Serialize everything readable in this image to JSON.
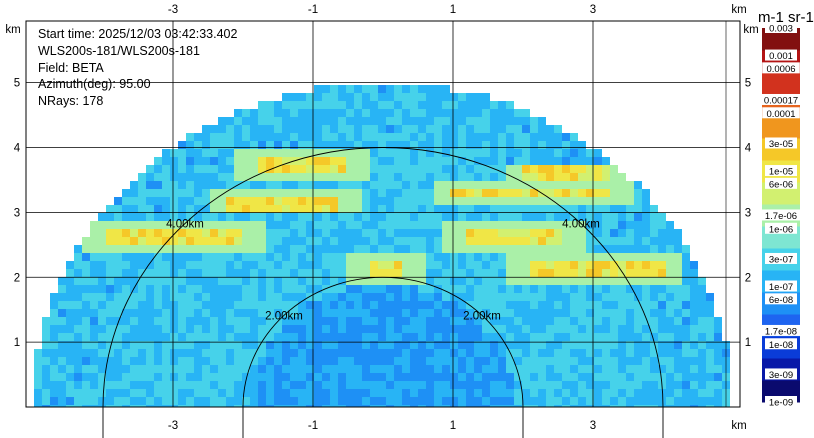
{
  "info": {
    "start_time": "Start time: 2025/12/03 03:42:33.402",
    "instrument": "WLS200s-181/WLS200s-181",
    "field": "Field: BETA",
    "azimuth": "Azimuth(deg): 95.00",
    "nrays": "NRays: 178"
  },
  "colorbar": {
    "title": "m-1 sr-1",
    "labels": [
      {
        "text": "0.003",
        "value": 0.003
      },
      {
        "text": "0.001",
        "value": 0.001
      },
      {
        "text": "0.0006",
        "value": 0.0006
      },
      {
        "text": "0.00017",
        "value": 0.00017
      },
      {
        "text": "0.0001",
        "value": 0.0001
      },
      {
        "text": "3e-05",
        "value": 3e-05
      },
      {
        "text": "1e-05",
        "value": 1e-05
      },
      {
        "text": "6e-06",
        "value": 6e-06
      },
      {
        "text": "1.7e-06",
        "value": 1.7e-06
      },
      {
        "text": "1e-06",
        "value": 1e-06
      },
      {
        "text": "3e-07",
        "value": 3e-07
      },
      {
        "text": "1e-07",
        "value": 1e-07
      },
      {
        "text": "6e-08",
        "value": 6e-08
      },
      {
        "text": "1.7e-08",
        "value": 1.7e-08
      },
      {
        "text": "1e-08",
        "value": 1e-08
      },
      {
        "text": "3e-09",
        "value": 3e-09
      },
      {
        "text": "1e-09",
        "value": 1e-09
      }
    ],
    "colors": [
      "#0a0a6e",
      "#0818a8",
      "#0a3cd8",
      "#1e64f0",
      "#1e90f5",
      "#28b4f5",
      "#46d2ea",
      "#7ee6d2",
      "#aaf0a8",
      "#d2f070",
      "#f0e646",
      "#f5c828",
      "#f0961e",
      "#e6641e",
      "#d2321e",
      "#b41414",
      "#821010"
    ]
  },
  "chart_data": {
    "type": "heatmap",
    "title": "",
    "field": "BETA",
    "azimuth_deg": 95.0,
    "nrays": 178,
    "x_axis_label": "km",
    "y_axis_label": "km",
    "x_ticks": [
      "-3",
      "-1",
      "1",
      "3"
    ],
    "y_ticks": [
      "1",
      "2",
      "3",
      "4",
      "5"
    ],
    "x_range_km": [
      -5.1,
      5.1
    ],
    "y_range_km": [
      0,
      5.95
    ],
    "range_rings": [
      {
        "radius_km": 2.0,
        "label": "2.00km"
      },
      {
        "radius_km": 4.0,
        "label": "4.00km"
      }
    ],
    "max_range_km": 5.0,
    "aerosol_layers_km": [
      {
        "height": 3.7,
        "x_from": -1.8,
        "x_to": -0.5
      },
      {
        "height": 3.55,
        "x_from": 2.0,
        "x_to": 3.2
      },
      {
        "height": 3.15,
        "x_from": -2.2,
        "x_to": -0.6
      },
      {
        "height": 3.3,
        "x_from": 1.0,
        "x_to": 3.3
      },
      {
        "height": 2.65,
        "x_from": -4.0,
        "x_to": -2.0
      },
      {
        "height": 2.65,
        "x_from": 1.2,
        "x_to": 2.6
      },
      {
        "height": 2.1,
        "x_from": 2.1,
        "x_to": 4.0
      },
      {
        "height": 2.1,
        "x_from": -0.2,
        "x_to": 0.3
      }
    ],
    "grid": true,
    "colorbar_label": "m-1 sr-1",
    "colorbar_min": 1e-09,
    "colorbar_max": 0.003
  }
}
